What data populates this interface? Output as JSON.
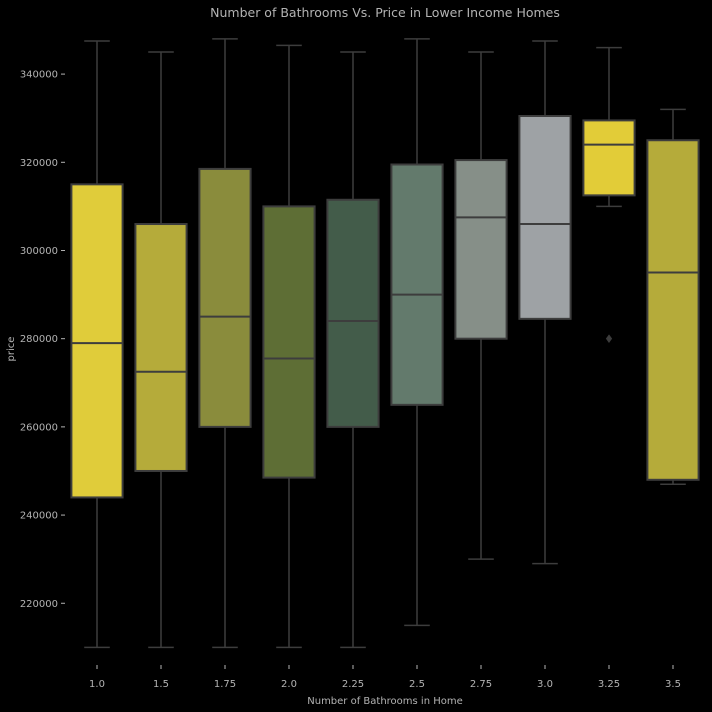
{
  "chart_data": {
    "type": "box",
    "title": "Number of Bathrooms Vs. Price in Lower Income Homes",
    "xlabel": "Number of Bathrooms in Home",
    "ylabel": "price",
    "ylim": [
      206000,
      350000
    ],
    "yticks": [
      "220000",
      "240000",
      "260000",
      "280000",
      "300000",
      "320000",
      "340000"
    ],
    "grid": false,
    "categories": [
      "1.0",
      "1.5",
      "1.75",
      "2.0",
      "2.25",
      "2.5",
      "2.75",
      "3.0",
      "3.25",
      "3.5"
    ],
    "boxes": [
      {
        "category": "1.0",
        "whisker_low": 210000,
        "q1": 244000,
        "median": 279000,
        "q3": 315000,
        "whisker_high": 347500,
        "outliers": [],
        "color": "#e0cc3a"
      },
      {
        "category": "1.5",
        "whisker_low": 210000,
        "q1": 250000,
        "median": 272500,
        "q3": 306000,
        "whisker_high": 345000,
        "outliers": [],
        "color": "#b5ab3a"
      },
      {
        "category": "1.75",
        "whisker_low": 210000,
        "q1": 260000,
        "median": 285000,
        "q3": 318500,
        "whisker_high": 348000,
        "outliers": [],
        "color": "#8a8c3c"
      },
      {
        "category": "2.0",
        "whisker_low": 210000,
        "q1": 248500,
        "median": 275500,
        "q3": 310000,
        "whisker_high": 346500,
        "outliers": [],
        "color": "#5e6e35"
      },
      {
        "category": "2.25",
        "whisker_low": 210000,
        "q1": 260000,
        "median": 284000,
        "q3": 311500,
        "whisker_high": 345000,
        "outliers": [],
        "color": "#435c4a"
      },
      {
        "category": "2.5",
        "whisker_low": 215000,
        "q1": 265000,
        "median": 290000,
        "q3": 319500,
        "whisker_high": 348000,
        "outliers": [],
        "color": "#637a6c"
      },
      {
        "category": "2.75",
        "whisker_low": 230000,
        "q1": 280000,
        "median": 307500,
        "q3": 320500,
        "whisker_high": 345000,
        "outliers": [],
        "color": "#868f88"
      },
      {
        "category": "3.0",
        "whisker_low": 229000,
        "q1": 284500,
        "median": 306000,
        "q3": 330500,
        "whisker_high": 347500,
        "outliers": [],
        "color": "#9ea2a5"
      },
      {
        "category": "3.25",
        "whisker_low": 310000,
        "q1": 312500,
        "median": 324000,
        "q3": 329500,
        "whisker_high": 346000,
        "outliers": [
          280000
        ],
        "color": "#e2cc38"
      },
      {
        "category": "3.5",
        "whisker_low": 247000,
        "q1": 248000,
        "median": 295000,
        "q3": 325000,
        "whisker_high": 332000,
        "outliers": [],
        "color": "#b5ab3a"
      }
    ]
  }
}
